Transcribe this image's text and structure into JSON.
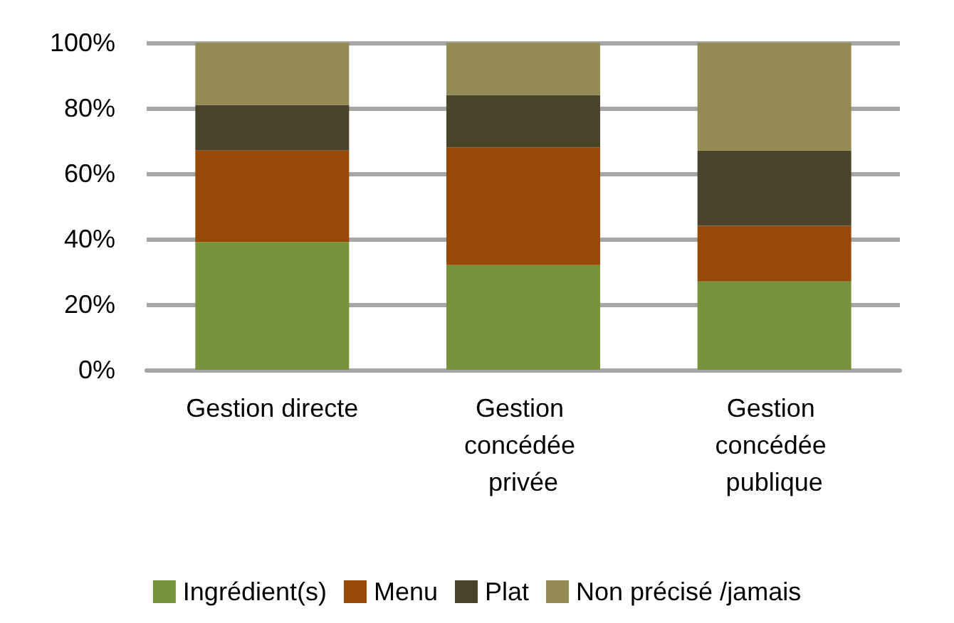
{
  "chart_data": {
    "type": "bar",
    "stacked": true,
    "categories": [
      "Gestion directe",
      "Gestion concédée privée",
      "Gestion concédée publique"
    ],
    "series": [
      {
        "name": "Ingrédient(s)",
        "color": "#77933c",
        "values": [
          39,
          32,
          27
        ]
      },
      {
        "name": "Menu",
        "color": "#984807",
        "values": [
          28,
          36,
          17
        ]
      },
      {
        "name": "Plat",
        "color": "#4a452a",
        "values": [
          14,
          16,
          23
        ]
      },
      {
        "name": "Non précisé /jamais",
        "color": "#948a54",
        "values": [
          19,
          16,
          33
        ]
      }
    ],
    "ylim": [
      0,
      100
    ],
    "yticks": [
      {
        "value": 0,
        "label": "0%"
      },
      {
        "value": 20,
        "label": "20%"
      },
      {
        "value": 40,
        "label": "40%"
      },
      {
        "value": 60,
        "label": "60%"
      },
      {
        "value": 80,
        "label": "80%"
      },
      {
        "value": 100,
        "label": "100%"
      }
    ],
    "grid": "y",
    "legend": "bottom"
  }
}
